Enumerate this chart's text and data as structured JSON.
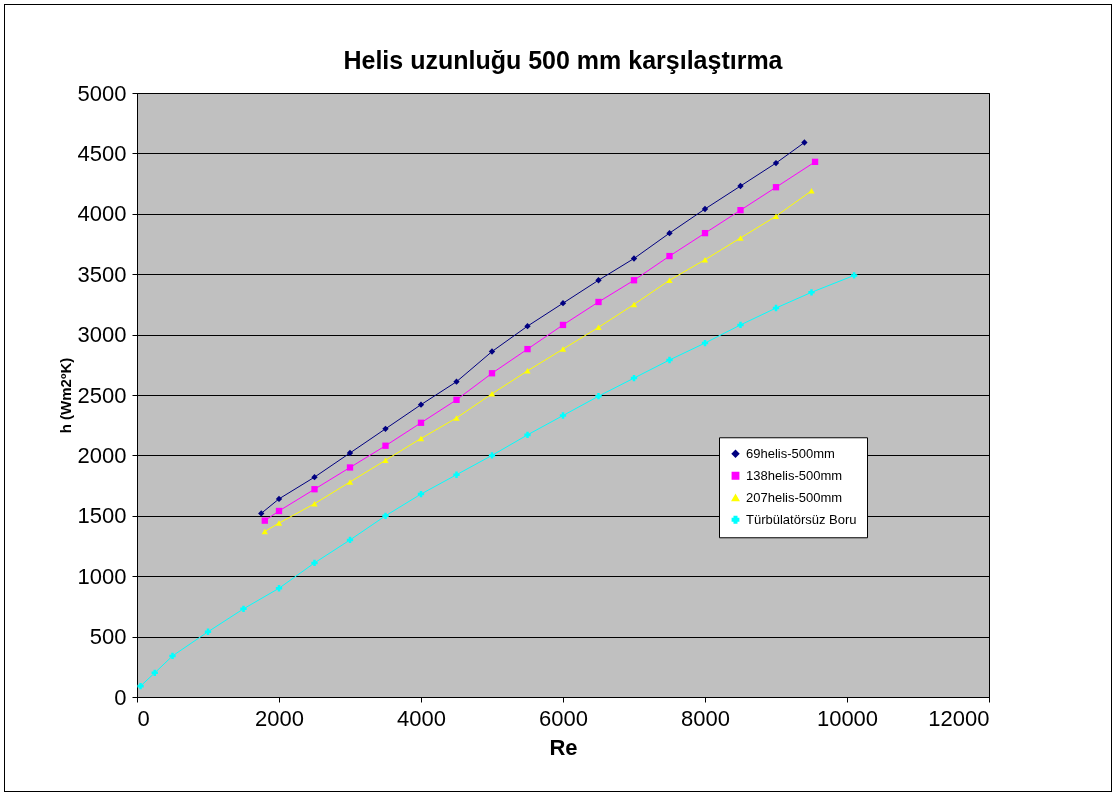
{
  "chart_data": {
    "type": "line",
    "title": "Helis uzunluğu 500 mm karşılaştırma",
    "xlabel": "Re",
    "ylabel": "h (Wm2ºK)",
    "xlim": [
      0,
      12000
    ],
    "xticks": [
      0,
      2000,
      4000,
      6000,
      8000,
      10000,
      12000
    ],
    "ylim": [
      0,
      5000
    ],
    "yticks": [
      0,
      500,
      1000,
      1500,
      2000,
      2500,
      3000,
      3500,
      4000,
      4500,
      5000
    ],
    "grid": "y",
    "legend": "right",
    "series": [
      {
        "name": "69helis-500mm",
        "color": "#000080",
        "marker": "diamond",
        "x": [
          1750,
          2000,
          2500,
          3000,
          3500,
          4000,
          4500,
          5000,
          5500,
          6000,
          6500,
          7000,
          7500,
          8000,
          8500,
          9000,
          9400
        ],
        "values": [
          1520,
          1640,
          1820,
          2020,
          2220,
          2420,
          2610,
          2860,
          3070,
          3260,
          3450,
          3630,
          3840,
          4040,
          4230,
          4420,
          4590
        ]
      },
      {
        "name": "138helis-500mm",
        "color": "#ff00ff",
        "marker": "square",
        "x": [
          1800,
          2000,
          2500,
          3000,
          3500,
          4000,
          4500,
          5000,
          5500,
          6000,
          6500,
          7000,
          7500,
          8000,
          8500,
          9000,
          9550
        ],
        "values": [
          1460,
          1540,
          1720,
          1900,
          2080,
          2270,
          2460,
          2680,
          2880,
          3080,
          3270,
          3450,
          3650,
          3840,
          4030,
          4220,
          4430
        ]
      },
      {
        "name": "207helis-500mm",
        "color": "#ffff00",
        "marker": "triangle",
        "x": [
          1800,
          2000,
          2500,
          3000,
          3500,
          4000,
          4500,
          5000,
          5500,
          6000,
          6500,
          7000,
          7500,
          8000,
          8500,
          9000,
          9500
        ],
        "values": [
          1370,
          1440,
          1600,
          1780,
          1960,
          2140,
          2310,
          2510,
          2700,
          2880,
          3060,
          3250,
          3450,
          3620,
          3800,
          3980,
          4190
        ]
      },
      {
        "name": "Türbülatörsüz Boru",
        "color": "#00ffff",
        "marker": "cross",
        "x": [
          50,
          250,
          500,
          1000,
          1500,
          2000,
          2500,
          3000,
          3500,
          4000,
          4500,
          5000,
          5500,
          6000,
          6500,
          7000,
          7500,
          8000,
          8500,
          9000,
          9500,
          10100
        ],
        "values": [
          90,
          200,
          340,
          540,
          730,
          900,
          1110,
          1300,
          1500,
          1680,
          1840,
          2000,
          2170,
          2330,
          2490,
          2640,
          2790,
          2930,
          3080,
          3220,
          3350,
          3490
        ]
      }
    ]
  }
}
